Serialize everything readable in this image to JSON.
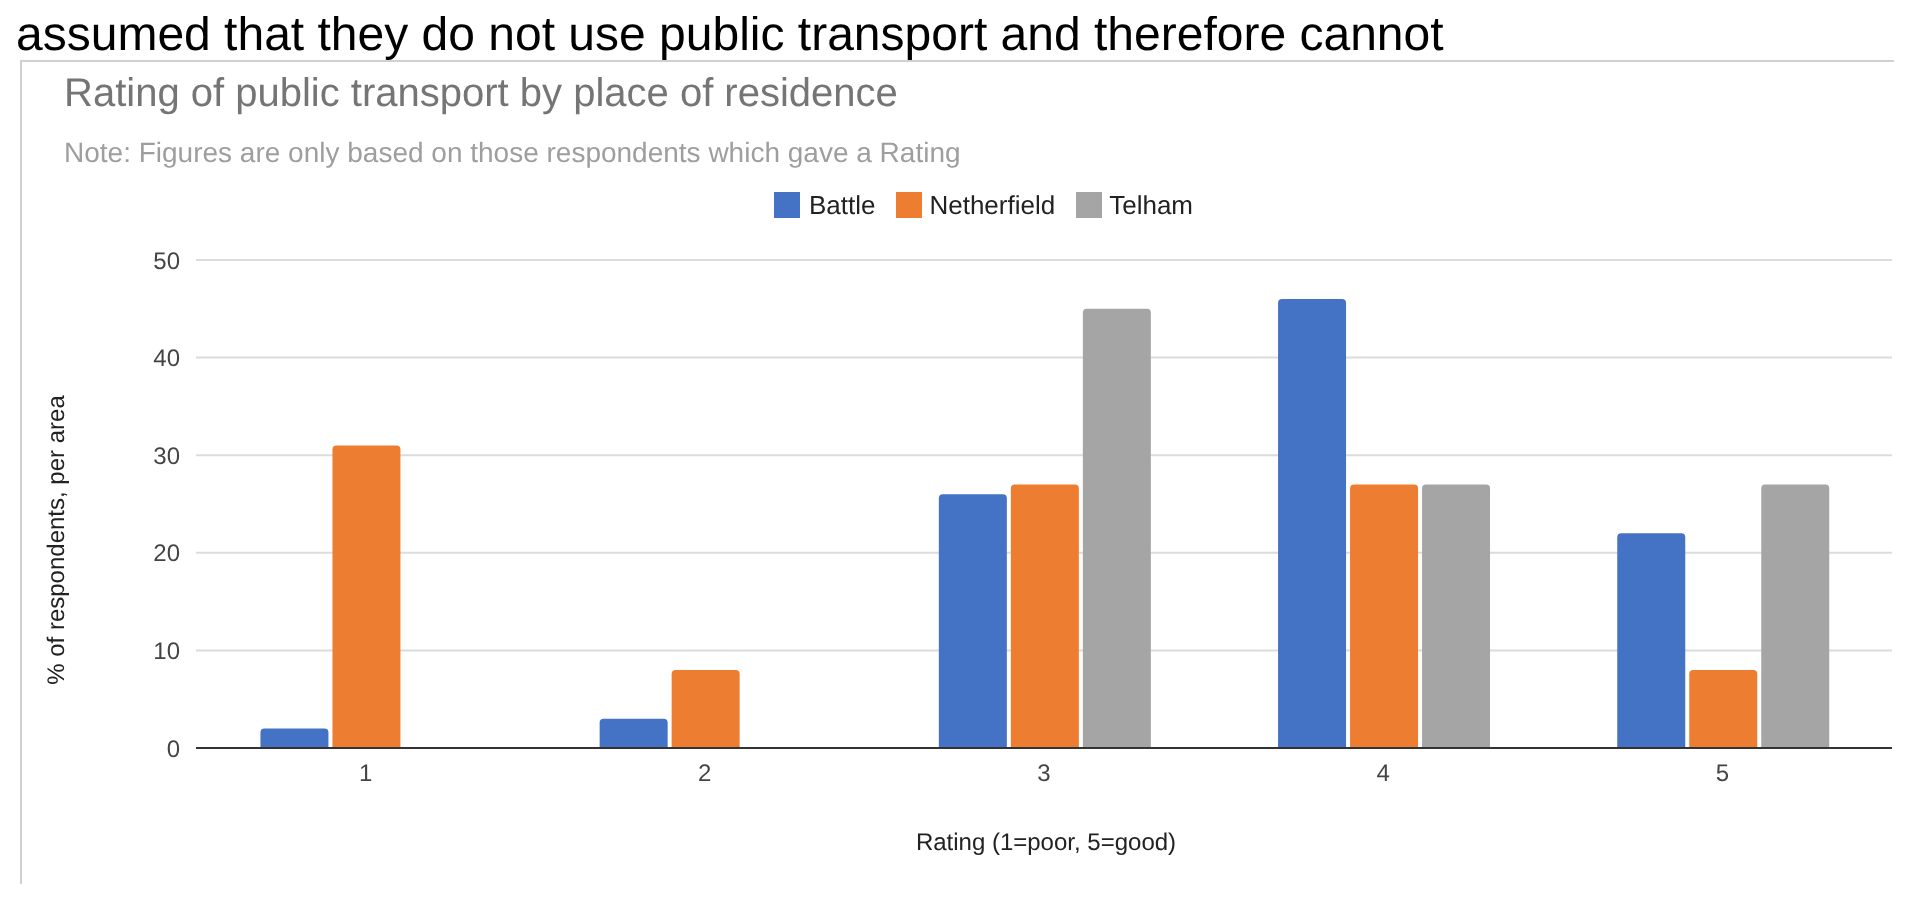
{
  "chart_data": {
    "type": "bar",
    "title": "Rating of public transport by place of residence",
    "subtitle": "Note: Figures are only based on those respondents which gave a Rating",
    "annotations": [
      "assumed that they do not use public transport and therefore cannot"
    ],
    "xlabel": "Rating (1=poor, 5=good)",
    "ylabel": "% of respondents, per area",
    "categories": [
      "1",
      "2",
      "3",
      "4",
      "5"
    ],
    "series": [
      {
        "name": "Battle",
        "color": "#4472c4",
        "values": [
          2,
          3,
          26,
          46,
          22
        ]
      },
      {
        "name": "Netherfield",
        "color": "#ed7d31",
        "values": [
          31,
          8,
          27,
          27,
          8
        ]
      },
      {
        "name": "Telham",
        "color": "#a5a5a5",
        "values": [
          0,
          0,
          45,
          27,
          27
        ]
      }
    ],
    "ylim": [
      0,
      50
    ],
    "yticks": [
      0,
      10,
      20,
      30,
      40,
      50
    ],
    "grid": "y",
    "legend": "top"
  }
}
